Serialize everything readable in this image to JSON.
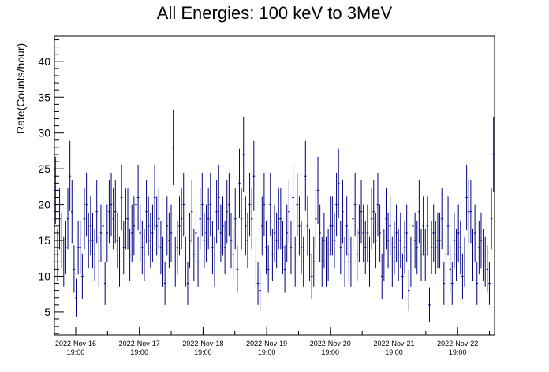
{
  "chart_data": {
    "type": "scatter",
    "title": "All Energies:  100 keV to 3MeV",
    "ylabel": "Rate(Counts/hour)",
    "xlabel": "",
    "ylim": [
      1.8,
      43.5
    ],
    "yticks": [
      5,
      10,
      15,
      20,
      25,
      30,
      35,
      40
    ],
    "xticks": [
      {
        "date": "2022-Nov-16",
        "time": "19:00"
      },
      {
        "date": "2022-Nov-17",
        "time": "19:00"
      },
      {
        "date": "2022-Nov-18",
        "time": "19:00"
      },
      {
        "date": "2022-Nov-19",
        "time": "19:00"
      },
      {
        "date": "2022-Nov-20",
        "time": "19:00"
      },
      {
        "date": "2022-Nov-21",
        "time": "19:00"
      },
      {
        "date": "2022-Nov-22",
        "time": "19:00"
      }
    ],
    "grid": false,
    "legend": "none",
    "marker_color": "#000080",
    "error_bars": "sqrt(N)",
    "series": [
      {
        "values": [
          22,
          13,
          18,
          15,
          12,
          14,
          18,
          24,
          19,
          11,
          7,
          14,
          14,
          10,
          18,
          20,
          15,
          17,
          15,
          13,
          19,
          12,
          16,
          17,
          9,
          16,
          19,
          20,
          18,
          19,
          15,
          12,
          21,
          14,
          18,
          18,
          13,
          16,
          17,
          20,
          21,
          16,
          14,
          13,
          19,
          17,
          15,
          16,
          21,
          17,
          18,
          14,
          12,
          9,
          17,
          15,
          16,
          28,
          12,
          14,
          17,
          18,
          20,
          12,
          9,
          15,
          19,
          13,
          16,
          12,
          18,
          20,
          15,
          16,
          18,
          20,
          14,
          12,
          19,
          21,
          16,
          17,
          14,
          19,
          20,
          15,
          13,
          18,
          11,
          23,
          18,
          27,
          17,
          15,
          20,
          18,
          24,
          12,
          9,
          8,
          17,
          20,
          14,
          11,
          20,
          13,
          16,
          15,
          18,
          18,
          14,
          11,
          16,
          19,
          14,
          21,
          12,
          20,
          17,
          14,
          12,
          24,
          17,
          13,
          10,
          12,
          18,
          22,
          16,
          12,
          15,
          12,
          13,
          17,
          17,
          15,
          20,
          23,
          14,
          19,
          12,
          17,
          13,
          12,
          18,
          20,
          13,
          16,
          19,
          16,
          14,
          16,
          12,
          18,
          19,
          15,
          20,
          16,
          10,
          13,
          18,
          15,
          17,
          12,
          14,
          16,
          13,
          15,
          10,
          14,
          16,
          8,
          12,
          17,
          15,
          14,
          19,
          13,
          17,
          13,
          17,
          6,
          14,
          16,
          14,
          15,
          15,
          18,
          9,
          13,
          17,
          11,
          9,
          15,
          13,
          16,
          14,
          10,
          12,
          21,
          19,
          19,
          13,
          16,
          9,
          14,
          15,
          13,
          12,
          11,
          9,
          18,
          27
        ]
      }
    ]
  }
}
